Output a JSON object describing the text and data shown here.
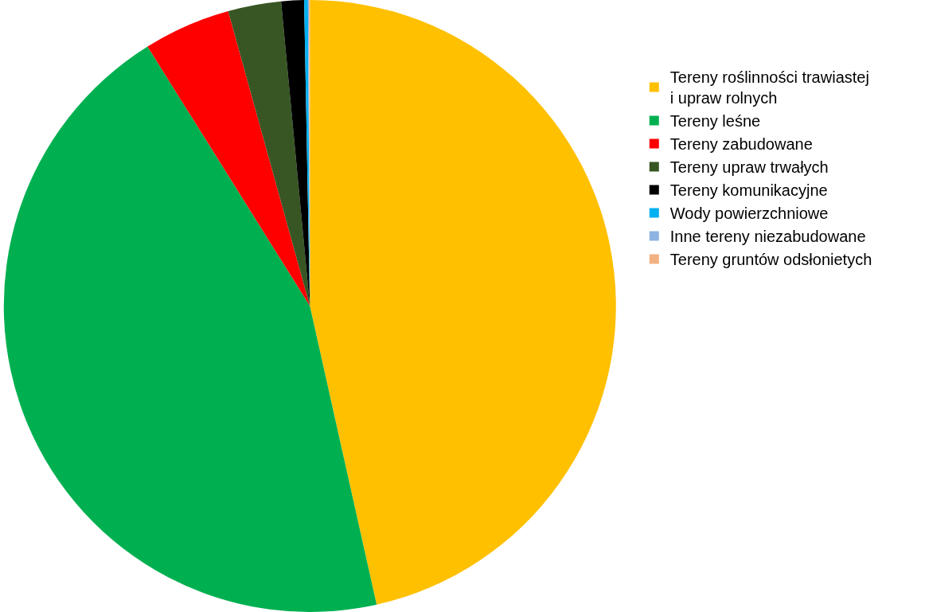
{
  "chart_data": {
    "type": "pie",
    "categories": [
      "Tereny roślinności trawiastej i upraw rolnych",
      "Tereny leśne",
      "Tereny zabudowane",
      "Tereny upraw trwałych",
      "Tereny komunikacyjne",
      "Wody powierzchniowe",
      "Inne tereny niezabudowane",
      "Tereny gruntów odsłonietych"
    ],
    "values": [
      46.5,
      44.6,
      4.6,
      2.8,
      1.2,
      0.2,
      0.05,
      0.05
    ],
    "colors": [
      "#ffc000",
      "#00b050",
      "#ff0000",
      "#375623",
      "#000000",
      "#00b0f0",
      "#8db4e2",
      "#f4b183"
    ],
    "legend": "right"
  }
}
